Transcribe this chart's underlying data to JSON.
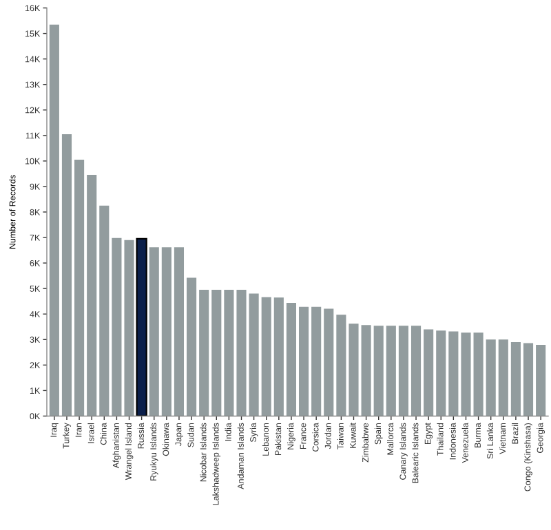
{
  "chart_data": {
    "type": "bar",
    "ylabel": "Number of Records",
    "categories": [
      "Iraq",
      "Turkey",
      "Iran",
      "Israel",
      "China",
      "Afghanistan",
      "Wrangel Island",
      "Russia",
      "Ryukyu Islands",
      "Okinawa",
      "Japan",
      "Sudan",
      "Nicobar Islands",
      "Lakshadweep Islands",
      "India",
      "Andaman Islands",
      "Syria",
      "Lebanon",
      "Pakistan",
      "Nigeria",
      "France",
      "Corsica",
      "Jordan",
      "Taiwan",
      "Kuwait",
      "Zimbabwe",
      "Spain",
      "Mallorca",
      "Canary Islands",
      "Balearic Islands",
      "Egypt",
      "Thailand",
      "Indonesia",
      "Venezuela",
      "Burma",
      "Sri Lanka",
      "Vietnam",
      "Brazil",
      "Congo (Kinshasa)",
      "Georgia"
    ],
    "values": [
      15350,
      11050,
      10050,
      9460,
      8250,
      6980,
      6900,
      6950,
      6620,
      6620,
      6620,
      5420,
      4950,
      4950,
      4950,
      4950,
      4800,
      4660,
      4650,
      4440,
      4280,
      4280,
      4210,
      3970,
      3620,
      3570,
      3540,
      3540,
      3540,
      3540,
      3400,
      3350,
      3320,
      3270,
      3270,
      3000,
      3000,
      2900,
      2860,
      2790
    ],
    "colors": [
      "#929c9e",
      "#929c9e",
      "#929c9e",
      "#929c9e",
      "#929c9e",
      "#929c9e",
      "#929c9e",
      "#0b1f4a",
      "#929c9e",
      "#929c9e",
      "#929c9e",
      "#929c9e",
      "#929c9e",
      "#929c9e",
      "#929c9e",
      "#929c9e",
      "#929c9e",
      "#929c9e",
      "#929c9e",
      "#929c9e",
      "#929c9e",
      "#929c9e",
      "#929c9e",
      "#929c9e",
      "#929c9e",
      "#929c9e",
      "#929c9e",
      "#929c9e",
      "#929c9e",
      "#929c9e",
      "#929c9e",
      "#929c9e",
      "#929c9e",
      "#929c9e",
      "#929c9e",
      "#929c9e",
      "#929c9e",
      "#929c9e",
      "#929c9e",
      "#929c9e"
    ],
    "ylim": [
      0,
      16000
    ],
    "yticks": [
      {
        "value": 0,
        "label": "0K"
      },
      {
        "value": 1000,
        "label": "1K"
      },
      {
        "value": 2000,
        "label": "2K"
      },
      {
        "value": 3000,
        "label": "3K"
      },
      {
        "value": 4000,
        "label": "4K"
      },
      {
        "value": 5000,
        "label": "5K"
      },
      {
        "value": 6000,
        "label": "6K"
      },
      {
        "value": 7000,
        "label": "7K"
      },
      {
        "value": 8000,
        "label": "8K"
      },
      {
        "value": 9000,
        "label": "9K"
      },
      {
        "value": 10000,
        "label": "10K"
      },
      {
        "value": 11000,
        "label": "11K"
      },
      {
        "value": 12000,
        "label": "12K"
      },
      {
        "value": 13000,
        "label": "13K"
      },
      {
        "value": 14000,
        "label": "14K"
      },
      {
        "value": 15000,
        "label": "15K"
      },
      {
        "value": 16000,
        "label": "16K"
      }
    ],
    "grid": false,
    "legend": false
  }
}
